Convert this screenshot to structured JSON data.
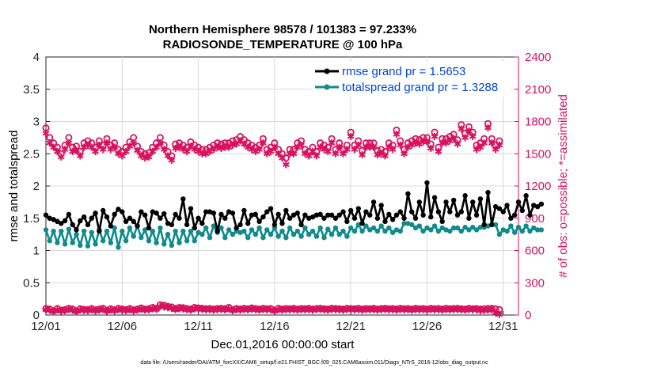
{
  "chart_data": {
    "type": "line",
    "title": "Northern Hemisphere 98578 / 101383 = 97.233%",
    "subtitle": "RADIOSONDE_TEMPERATURE @ 100 hPa",
    "xlabel": "Dec.01,2016 00:00:00 start",
    "ylabel_left": "rmse and totalspread",
    "ylabel_right": "# of obs: o=possible; *=assimilated",
    "footer": "data file: /Users/raeder/DAI/ATM_forcXX/CAM6_setup/f.e21.FHIST_BGC.f09_025.CAM6assim.011/Diags_NTrS_2016-12/obs_diag_output.nc",
    "xlim": [
      1,
      32
    ],
    "ylim_left": [
      0,
      4
    ],
    "ylim_right": [
      0,
      2400
    ],
    "x_ticks": [
      1,
      6,
      11,
      16,
      21,
      26,
      31
    ],
    "x_tick_labels": [
      "12/01",
      "12/06",
      "12/11",
      "12/16",
      "12/21",
      "12/26",
      "12/31"
    ],
    "y_ticks_left": [
      "0",
      "0.5",
      "1",
      "1.5",
      "2",
      "2.5",
      "3",
      "3.5",
      "4"
    ],
    "y_ticks_right": [
      "0",
      "300",
      "600",
      "900",
      "1200",
      "1500",
      "1800",
      "2100",
      "2400"
    ],
    "legend_position": "top-right",
    "colors": {
      "rmse": "#000000",
      "spread": "#0f8b8b",
      "obs": "#d7125e",
      "axis": "#262626"
    },
    "x_step_days": 0.25,
    "series": [
      {
        "name": "rmse",
        "legend": "rmse grand pr = 1.5653",
        "axis": "left",
        "values": [
          1.55,
          1.5,
          1.48,
          1.45,
          1.42,
          1.46,
          1.56,
          1.4,
          1.32,
          1.46,
          1.52,
          1.4,
          1.5,
          1.58,
          1.3,
          1.62,
          1.52,
          1.38,
          1.56,
          1.64,
          1.6,
          1.45,
          1.5,
          1.45,
          1.38,
          1.6,
          1.55,
          1.35,
          1.6,
          1.58,
          1.5,
          1.57,
          1.42,
          1.4,
          1.56,
          1.5,
          1.8,
          1.4,
          1.65,
          1.35,
          1.5,
          1.42,
          1.6,
          1.6,
          1.58,
          1.3,
          1.56,
          1.5,
          1.6,
          1.58,
          1.35,
          1.4,
          1.62,
          1.42,
          1.55,
          1.56,
          1.45,
          1.52,
          1.6,
          1.65,
          1.4,
          1.56,
          1.42,
          1.62,
          1.5,
          1.55,
          1.58,
          1.4,
          1.55,
          1.5,
          1.52,
          1.55,
          1.56,
          1.5,
          1.55,
          1.55,
          1.5,
          1.55,
          1.6,
          1.45,
          1.62,
          1.5,
          1.65,
          1.42,
          1.6,
          1.55,
          1.75,
          1.5,
          1.7,
          1.45,
          1.56,
          1.48,
          1.55,
          1.6,
          1.5,
          1.88,
          1.6,
          1.5,
          1.75,
          1.55,
          2.05,
          1.52,
          1.82,
          1.6,
          1.45,
          1.75,
          1.6,
          1.78,
          1.55,
          1.6,
          1.85,
          1.5,
          1.75,
          1.55,
          1.8,
          1.4,
          1.9,
          1.4,
          1.68,
          1.65,
          1.6,
          1.7,
          1.5,
          1.55,
          1.75,
          1.62,
          1.85,
          1.55,
          1.7,
          1.68,
          1.72
        ],
        "legend_entry": "rmse grand pr = 1.5653"
      },
      {
        "name": "totalspread",
        "legend": "totalspread grand pr = 1.3288",
        "axis": "left",
        "values": [
          1.32,
          1.15,
          1.3,
          1.12,
          1.3,
          1.1,
          1.33,
          1.12,
          1.25,
          1.08,
          1.3,
          1.07,
          1.28,
          1.1,
          1.32,
          1.15,
          1.3,
          1.12,
          1.35,
          1.05,
          1.3,
          1.15,
          1.35,
          1.22,
          1.38,
          1.2,
          1.32,
          1.15,
          1.3,
          1.12,
          1.35,
          1.1,
          1.25,
          1.08,
          1.3,
          1.12,
          1.3,
          1.15,
          1.3,
          1.15,
          1.28,
          1.25,
          1.35,
          1.2,
          1.38,
          1.28,
          1.35,
          1.2,
          1.32,
          1.25,
          1.3,
          1.28,
          1.3,
          1.2,
          1.32,
          1.25,
          1.35,
          1.2,
          1.32,
          1.25,
          1.35,
          1.22,
          1.3,
          1.2,
          1.35,
          1.25,
          1.3,
          1.22,
          1.35,
          1.25,
          1.3,
          1.22,
          1.35,
          1.2,
          1.33,
          1.25,
          1.35,
          1.25,
          1.3,
          1.22,
          1.35,
          1.3,
          1.4,
          1.3,
          1.38,
          1.32,
          1.35,
          1.3,
          1.38,
          1.3,
          1.35,
          1.28,
          1.32,
          1.3,
          1.42,
          1.42,
          1.4,
          1.35,
          1.38,
          1.3,
          1.35,
          1.32,
          1.38,
          1.3,
          1.35,
          1.32,
          1.3,
          1.35,
          1.35,
          1.3,
          1.36,
          1.32,
          1.36,
          1.32,
          1.36,
          1.36,
          1.38,
          1.4,
          1.4,
          1.25,
          1.32,
          1.3,
          1.38,
          1.28,
          1.36,
          1.3,
          1.38,
          1.3,
          1.35,
          1.32,
          1.32
        ],
        "legend_entry": "totalspread grand pr = 1.3288"
      },
      {
        "name": "possible",
        "axis": "right",
        "values": [
          1740,
          1650,
          1600,
          1560,
          1500,
          1580,
          1650,
          1560,
          1570,
          1520,
          1600,
          1620,
          1600,
          1560,
          1620,
          1580,
          1640,
          1580,
          1600,
          1540,
          1520,
          1560,
          1610,
          1650,
          1570,
          1520,
          1500,
          1510,
          1560,
          1600,
          1650,
          1580,
          1520,
          1480,
          1590,
          1600,
          1580,
          1560,
          1610,
          1580,
          1560,
          1540,
          1540,
          1560,
          1580,
          1600,
          1590,
          1600,
          1600,
          1620,
          1630,
          1660,
          1630,
          1600,
          1580,
          1560,
          1580,
          1640,
          1540,
          1560,
          1600,
          1540,
          1500,
          1460,
          1540,
          1540,
          1600,
          1620,
          1540,
          1520,
          1560,
          1520,
          1600,
          1580,
          1560,
          1640,
          1540,
          1600,
          1540,
          1580,
          1700,
          1580,
          1620,
          1530,
          1600,
          1600,
          1600,
          1530,
          1540,
          1520,
          1600,
          1580,
          1720,
          1620,
          1540,
          1600,
          1620,
          1640,
          1630,
          1650,
          1650,
          1590,
          1700,
          1560,
          1640,
          1640,
          1660,
          1680,
          1630,
          1770,
          1690,
          1750,
          1700,
          1580,
          1600,
          1640,
          1780,
          1640,
          1580,
          1620
        ],
        "legend_entry": "o=possible"
      },
      {
        "name": "assimilated",
        "axis": "right",
        "values": [
          1690,
          1600,
          1560,
          1520,
          1470,
          1540,
          1600,
          1520,
          1530,
          1480,
          1560,
          1580,
          1560,
          1520,
          1580,
          1540,
          1600,
          1540,
          1560,
          1500,
          1480,
          1520,
          1570,
          1600,
          1530,
          1480,
          1460,
          1470,
          1520,
          1560,
          1600,
          1540,
          1480,
          1440,
          1550,
          1560,
          1540,
          1520,
          1570,
          1540,
          1520,
          1500,
          1500,
          1520,
          1540,
          1560,
          1550,
          1560,
          1560,
          1580,
          1590,
          1620,
          1590,
          1560,
          1540,
          1520,
          1540,
          1600,
          1500,
          1520,
          1560,
          1500,
          1460,
          1400,
          1500,
          1500,
          1560,
          1580,
          1500,
          1480,
          1520,
          1480,
          1560,
          1540,
          1520,
          1600,
          1500,
          1560,
          1500,
          1540,
          1660,
          1540,
          1580,
          1490,
          1560,
          1560,
          1560,
          1490,
          1500,
          1480,
          1560,
          1540,
          1680,
          1580,
          1500,
          1560,
          1580,
          1600,
          1590,
          1610,
          1610,
          1550,
          1660,
          1520,
          1600,
          1600,
          1620,
          1640,
          1590,
          1730,
          1650,
          1710,
          1660,
          1540,
          1560,
          1600,
          1740,
          1600,
          1540,
          1580
        ],
        "legend_entry": "*=assimilated"
      },
      {
        "name": "possible-low",
        "axis": "right",
        "values": [
          60,
          55,
          40,
          60,
          45,
          50,
          62,
          55,
          40,
          58,
          52,
          50,
          60,
          48,
          55,
          62,
          45,
          58,
          48,
          62,
          55,
          50,
          60,
          48,
          55,
          65,
          55,
          58,
          70,
          62,
          95,
          90,
          80,
          75,
          60,
          70,
          68,
          60,
          55,
          70,
          65,
          62,
          58,
          60,
          55,
          60,
          62,
          58,
          70,
          50,
          60,
          55,
          62,
          58,
          65,
          60,
          55,
          62,
          58,
          60,
          45,
          62,
          55,
          60,
          58,
          62,
          55,
          60,
          58,
          62,
          55,
          60,
          62,
          58,
          55,
          62,
          60,
          58,
          55,
          62,
          60,
          58,
          62,
          55,
          60,
          58,
          62,
          55,
          60,
          62,
          58,
          60,
          55,
          62,
          58,
          60,
          55,
          62,
          58,
          60,
          55,
          62,
          58,
          60,
          55,
          62,
          58,
          60,
          62,
          58,
          55,
          62,
          58,
          60,
          55,
          58,
          60,
          62,
          58,
          50
        ],
        "legend_entry": "o=possible"
      },
      {
        "name": "assimilated-low",
        "axis": "right",
        "values": [
          50,
          45,
          32,
          50,
          36,
          40,
          52,
          45,
          32,
          48,
          42,
          40,
          50,
          38,
          45,
          52,
          36,
          48,
          38,
          52,
          45,
          40,
          50,
          38,
          45,
          55,
          45,
          48,
          58,
          52,
          80,
          75,
          68,
          62,
          50,
          58,
          56,
          50,
          45,
          58,
          54,
          52,
          48,
          50,
          45,
          50,
          52,
          48,
          58,
          40,
          50,
          45,
          52,
          48,
          54,
          50,
          45,
          52,
          48,
          50,
          36,
          52,
          45,
          50,
          48,
          52,
          45,
          50,
          48,
          52,
          45,
          50,
          52,
          48,
          45,
          52,
          50,
          48,
          45,
          52,
          50,
          48,
          52,
          45,
          50,
          48,
          52,
          45,
          50,
          52,
          48,
          50,
          45,
          52,
          48,
          50,
          45,
          52,
          48,
          50,
          45,
          52,
          48,
          50,
          45,
          52,
          48,
          50,
          52,
          48,
          45,
          52,
          48,
          50,
          40,
          42,
          45,
          48,
          20,
          5
        ],
        "legend_entry": "*=assimilated"
      }
    ]
  }
}
